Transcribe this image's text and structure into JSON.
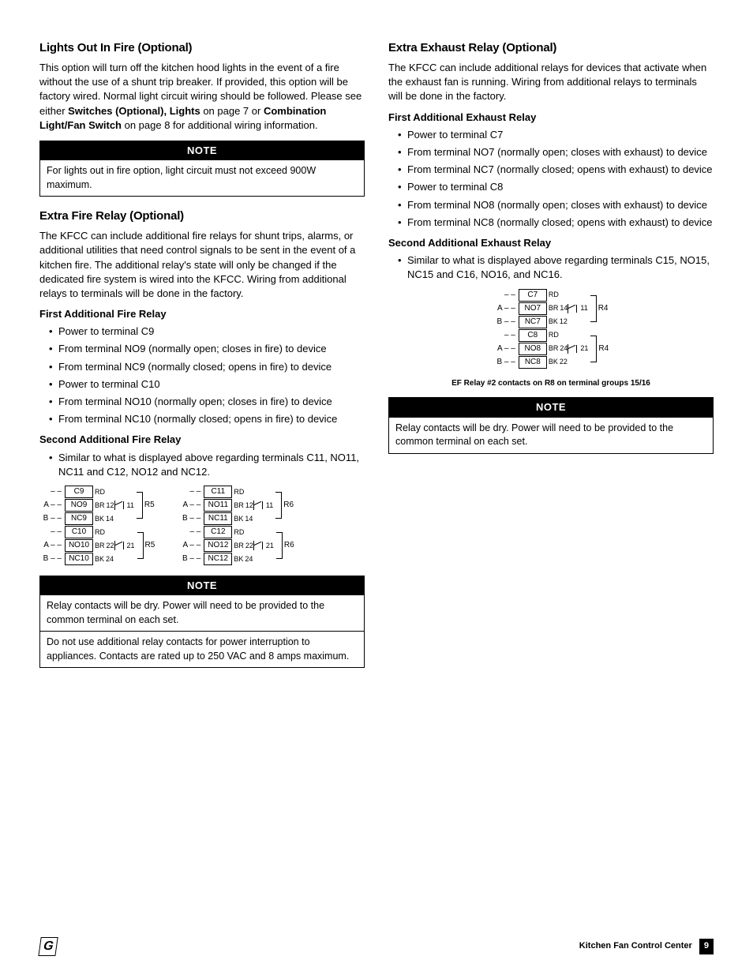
{
  "left": {
    "h1": "Lights Out In Fire (Optional)",
    "p1a": "This option will turn off the kitchen hood lights in the event of a fire without the use of a shunt trip breaker. If provided, this option will be factory wired. Normal light circuit wiring should be followed. Please see either ",
    "p1b": "Switches (Optional), Lights",
    "p1c": " on page 7 or ",
    "p1d": "Combination Light/Fan Switch",
    "p1e": " on page 8 for additional wiring information.",
    "note1_header": "NOTE",
    "note1_body": "For lights out in fire option, light circuit must not exceed 900W maximum.",
    "h2": "Extra Fire Relay (Optional)",
    "p2": "The KFCC can include additional fire relays for shunt trips, alarms, or additional utilities that need control signals to be sent in the event of a kitchen fire. The additional relay's state will only be changed if the dedicated fire system is wired into the KFCC. Wiring from additional relays to terminals will be done in the factory.",
    "sub1": "First Additional Fire Relay",
    "l1": [
      "Power to terminal C9",
      "From terminal NO9 (normally open; closes in fire) to device",
      "From terminal NC9 (normally closed; opens in fire) to device",
      "Power to terminal C10",
      "From terminal NO10 (normally open; closes in fire) to device",
      "From terminal NC10 (normally closed; opens in fire) to device"
    ],
    "sub2": "Second Additional Fire Relay",
    "l2": [
      "Similar to what is displayed above regarding terminals C11, NO11, NC11 and C12, NO12 and NC12."
    ],
    "note2_header": "NOTE",
    "note2_body1": "Relay contacts will be dry. Power will need to be provided to the common terminal on each set.",
    "note2_body2": "Do not use additional relay contacts for power interruption to appliances. Contacts are rated up to 250 VAC and 8 amps maximum.",
    "diagram_left": {
      "block1": {
        "c": "C9",
        "no": "NO9",
        "nc": "NC9",
        "c2": "C10",
        "no2": "NO10",
        "nc2": "NC10",
        "pins1": [
          "12",
          "11",
          "14"
        ],
        "pins2": [
          "22",
          "21",
          "24"
        ],
        "r": "R5"
      },
      "block2": {
        "c": "C11",
        "no": "NO11",
        "nc": "NC11",
        "c2": "C12",
        "no2": "NO12",
        "nc2": "NC12",
        "pins1": [
          "12",
          "11",
          "14"
        ],
        "pins2": [
          "22",
          "21",
          "24"
        ],
        "r": "R6"
      }
    }
  },
  "right": {
    "h1": "Extra Exhaust Relay (Optional)",
    "p1": "The KFCC can include additional relays for devices that activate when the exhaust fan is running. Wiring from additional relays to terminals will be done in the factory.",
    "sub1": "First Additional Exhaust Relay",
    "l1": [
      "Power to terminal C7",
      "From terminal NO7 (normally open; closes with exhaust) to device",
      "From terminal NC7 (normally closed; opens with exhaust) to device",
      "Power to terminal C8",
      "From terminal NO8 (normally open; closes with exhaust) to device",
      "From terminal NC8 (normally closed; opens with exhaust) to device"
    ],
    "sub2": "Second Additional Exhaust Relay",
    "l2": [
      "Similar to what is displayed above regarding terminals C15, NO15, NC15 and C16, NO16, and NC16."
    ],
    "diagram": {
      "block": {
        "c": "C7",
        "no": "NO7",
        "nc": "NC7",
        "c2": "C8",
        "no2": "NO8",
        "nc2": "NC8",
        "pins1": [
          "14",
          "11",
          "12"
        ],
        "pins2": [
          "24",
          "21",
          "22"
        ],
        "r": "R4"
      }
    },
    "caption": "EF Relay #2 contacts on R8 on terminal groups 15/16",
    "note_header": "NOTE",
    "note_body": "Relay contacts will be dry. Power will need to be provided to the common terminal on each set."
  },
  "wires": {
    "rd": "RD",
    "br": "BR",
    "bk": "BK"
  },
  "prefixes": {
    "dash": "– –",
    "a": "A – –",
    "b": "B – –"
  },
  "footer": {
    "title": "Kitchen Fan Control Center",
    "page": "9",
    "logo": "G"
  }
}
